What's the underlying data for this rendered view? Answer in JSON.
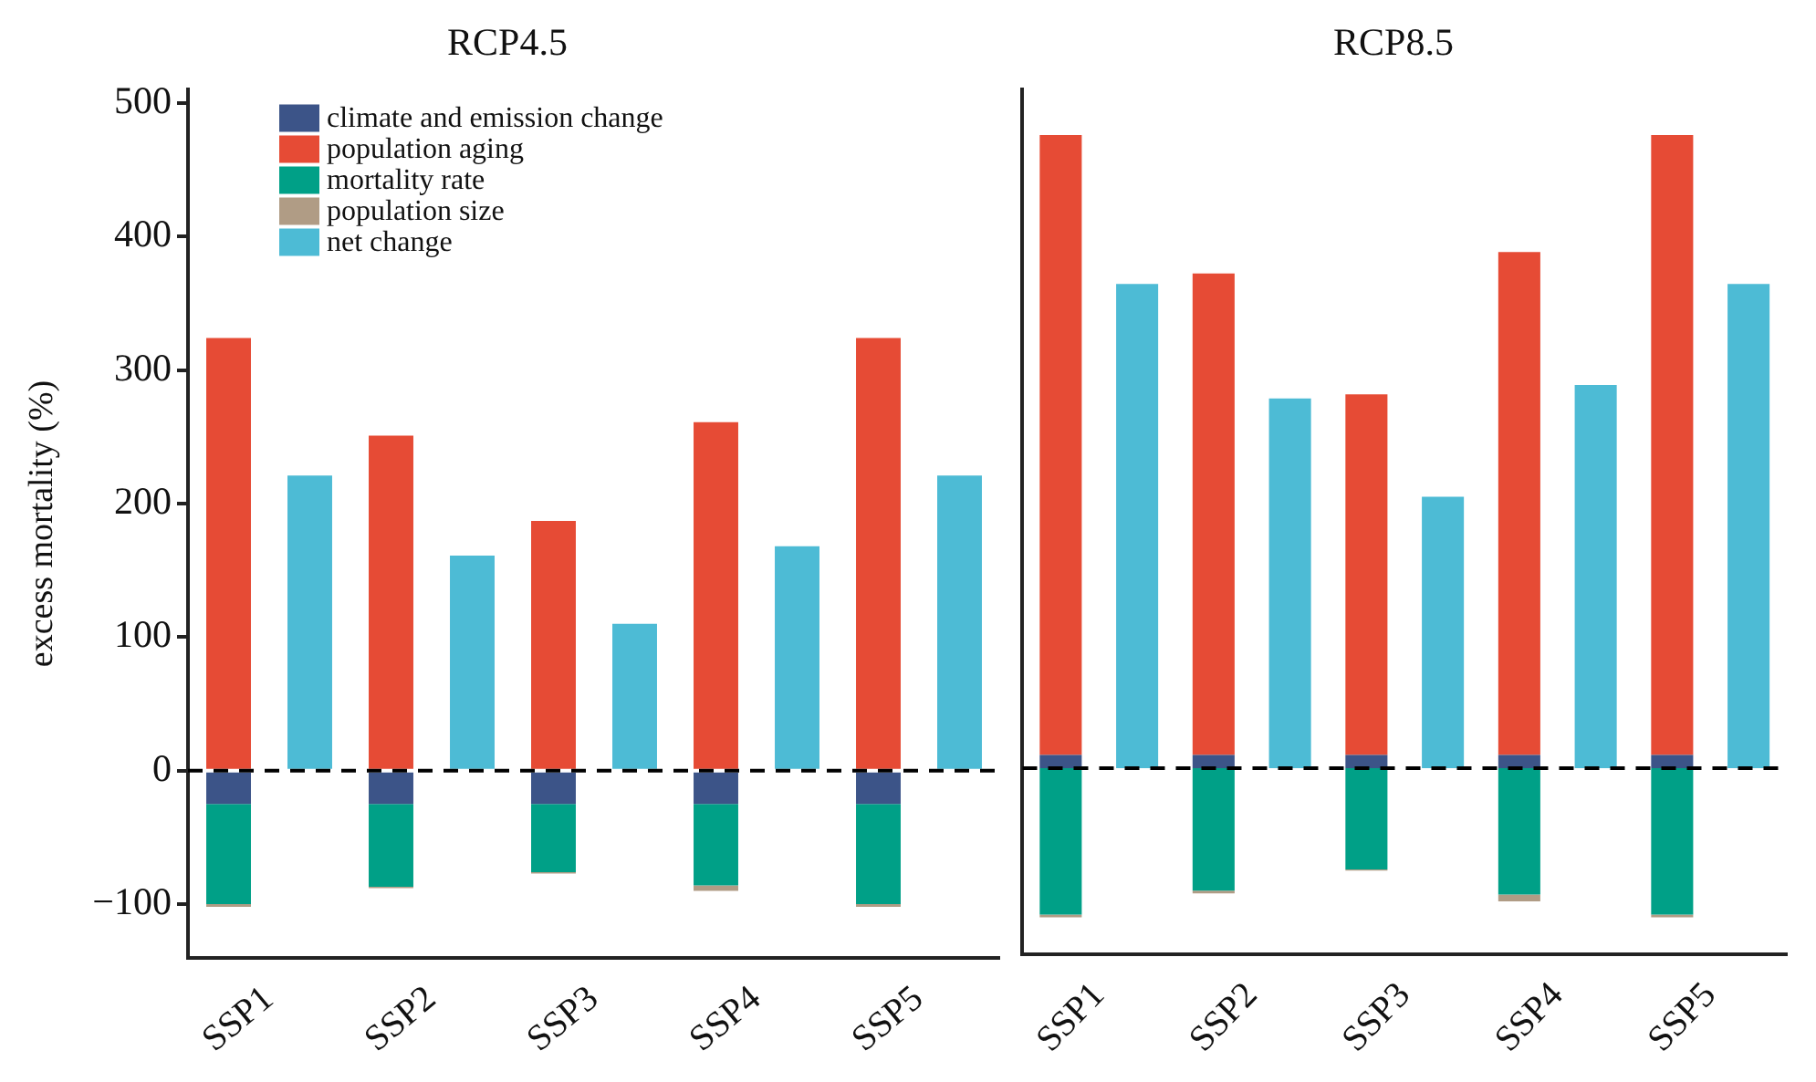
{
  "chart_data": [
    {
      "type": "bar",
      "title": "RCP4.5",
      "ylabel": "excess mortality (%)",
      "categories": [
        "SSP1",
        null,
        "SSP2",
        null,
        "SSP3",
        null,
        "SSP4",
        null,
        "SSP5",
        null
      ],
      "stacked": true,
      "series": [
        {
          "name": "climate and emission change",
          "color": "#3c5488",
          "values": [
            -25,
            null,
            -25,
            null,
            -25,
            null,
            -25,
            null,
            -25,
            null
          ]
        },
        {
          "name": "population aging",
          "color": "#e64b35",
          "values": [
            324,
            null,
            251,
            null,
            187,
            null,
            261,
            null,
            324,
            null
          ]
        },
        {
          "name": "mortality rate",
          "color": "#00a087",
          "values": [
            -75,
            null,
            -62,
            null,
            -51,
            null,
            -61,
            null,
            -75,
            null
          ]
        },
        {
          "name": "population size",
          "color": "#b09c85",
          "values": [
            -2,
            null,
            -1,
            null,
            -1,
            null,
            -4,
            null,
            -2,
            null
          ]
        },
        {
          "name": "net change",
          "color": "#4dbbd5",
          "values": [
            null,
            221,
            null,
            161,
            null,
            110,
            null,
            168,
            null,
            221
          ]
        }
      ],
      "ylim": [
        -140,
        510
      ],
      "yticks": [
        {
          "value": -100,
          "label": "−100"
        },
        0,
        100,
        200,
        300,
        400,
        500
      ],
      "ref_lines": [
        {
          "axis": "y",
          "value": 0,
          "color": "#000000",
          "line_style": "dashed"
        }
      ],
      "grid": false,
      "legend": "top left"
    },
    {
      "type": "bar",
      "title": "RCP8.5",
      "categories": [
        "SSP1",
        null,
        "SSP2",
        null,
        "SSP3",
        null,
        "SSP4",
        null,
        "SSP5",
        null
      ],
      "stacked": true,
      "series": [
        {
          "color": "#3c5488",
          "values": [
            10,
            null,
            10,
            null,
            10,
            null,
            10,
            null,
            10,
            null
          ]
        },
        {
          "color": "#e64b35",
          "values": [
            466,
            null,
            362,
            null,
            271,
            null,
            378,
            null,
            466,
            null
          ]
        },
        {
          "color": "#00a087",
          "values": [
            -110,
            null,
            -92,
            null,
            -76,
            null,
            -95,
            null,
            -110,
            null
          ]
        },
        {
          "color": "#b09c85",
          "values": [
            -2,
            null,
            -2,
            null,
            -1,
            null,
            -5,
            null,
            -2,
            null
          ]
        },
        {
          "color": "#4dbbd5",
          "values": [
            null,
            364,
            null,
            278,
            null,
            204,
            null,
            288,
            null,
            364
          ]
        }
      ],
      "ylim": [
        -140,
        510
      ],
      "ref_lines": [
        {
          "axis": "y",
          "value": 0,
          "color": "#000000",
          "line_style": "dashed"
        }
      ],
      "grid": false,
      "tick_labels": "x"
    }
  ]
}
